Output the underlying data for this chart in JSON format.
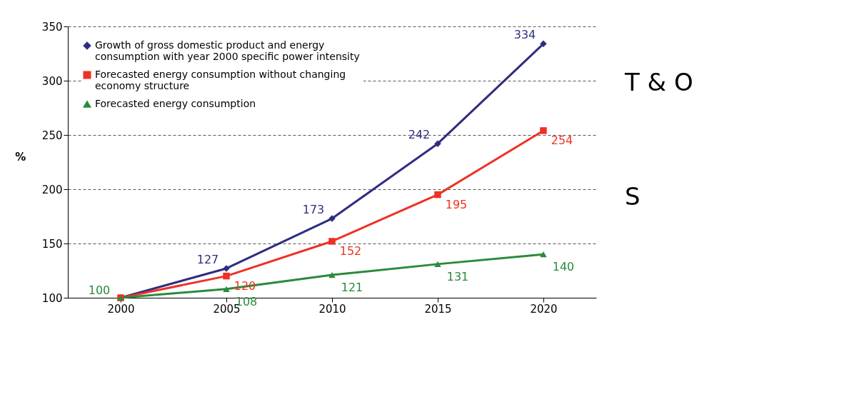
{
  "chart_data": {
    "type": "line",
    "ylabel": "%",
    "categories": [
      "2000",
      "2005",
      "2010",
      "2015",
      "2020"
    ],
    "ylim": [
      100,
      350
    ],
    "yticks": [
      100,
      150,
      200,
      250,
      300,
      350
    ],
    "grid": "y",
    "legend": "top left",
    "line_style": "solid",
    "series": [
      {
        "name": "Growth of gross domestic product and energy consumption  with year 2000 specific power intensity",
        "color": "#2e2d80",
        "marker": "diamond",
        "values": [
          100,
          127,
          173,
          242,
          334
        ],
        "value_labels": [
          null,
          "127",
          "173",
          "242",
          "334"
        ]
      },
      {
        "name": "Forecasted energy consumption without changing economy structure",
        "color": "#ee3124",
        "marker": "square",
        "values": [
          100,
          120,
          152,
          195,
          254
        ],
        "value_labels": [
          null,
          "120",
          "152",
          "195",
          "254"
        ]
      },
      {
        "name": "Forecasted energy consumption",
        "color": "#2a8a3c",
        "marker": "triangle",
        "values": [
          100,
          108,
          121,
          131,
          140
        ],
        "value_labels": [
          "100",
          "108",
          "121",
          "131",
          "140"
        ]
      }
    ],
    "annotations": [
      "T & O",
      "S"
    ]
  }
}
